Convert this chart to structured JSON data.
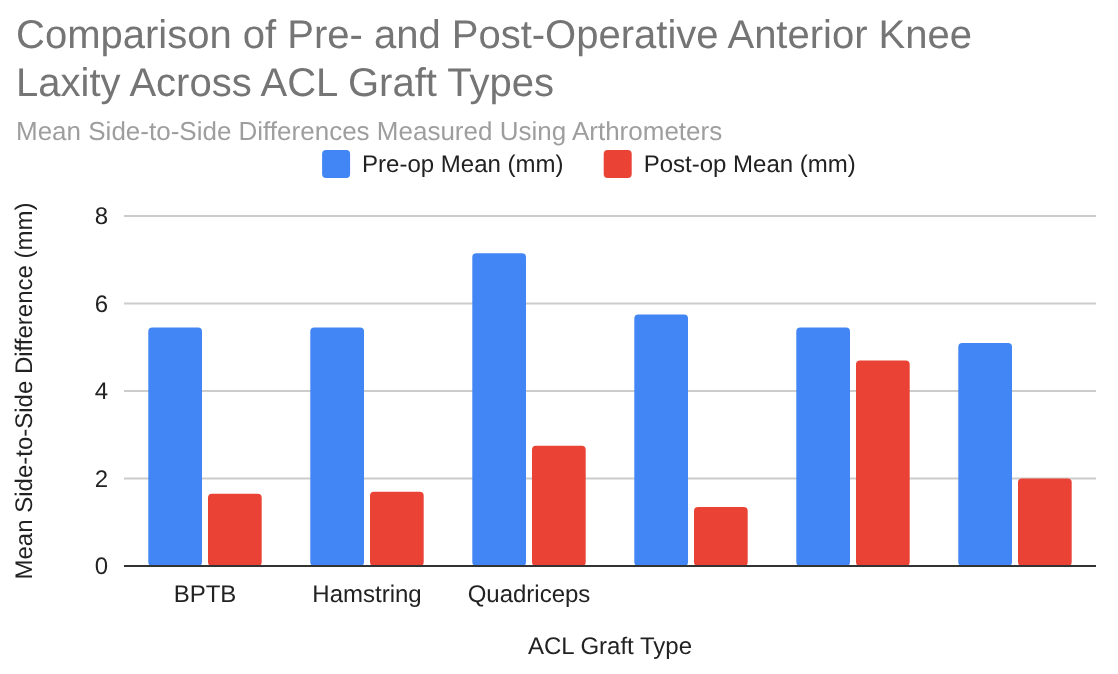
{
  "chart_data": {
    "type": "bar",
    "title": "Comparison of Pre- and Post-Operative Anterior Knee Laxity Across ACL Graft Types",
    "subtitle": "Mean Side-to-Side Differences Measured Using Arthrometers",
    "xlabel": "ACL Graft Type",
    "ylabel": "Mean Side-to-Side Difference (mm)",
    "categories": [
      "BPTB",
      "Hamstring",
      "Quadriceps",
      null,
      null,
      null
    ],
    "series": [
      {
        "name": "Pre-op Mean (mm)",
        "color": "#4285f4",
        "values": [
          5.45,
          5.45,
          7.15,
          5.75,
          5.45,
          5.1
        ]
      },
      {
        "name": "Post-op Mean (mm)",
        "color": "#ea4335",
        "values": [
          1.65,
          1.7,
          2.75,
          1.35,
          4.7,
          2.0
        ]
      }
    ],
    "ylim": [
      0,
      8
    ],
    "yticks": [
      0,
      2,
      4,
      6,
      8
    ],
    "grid": "y",
    "legend": "top"
  }
}
